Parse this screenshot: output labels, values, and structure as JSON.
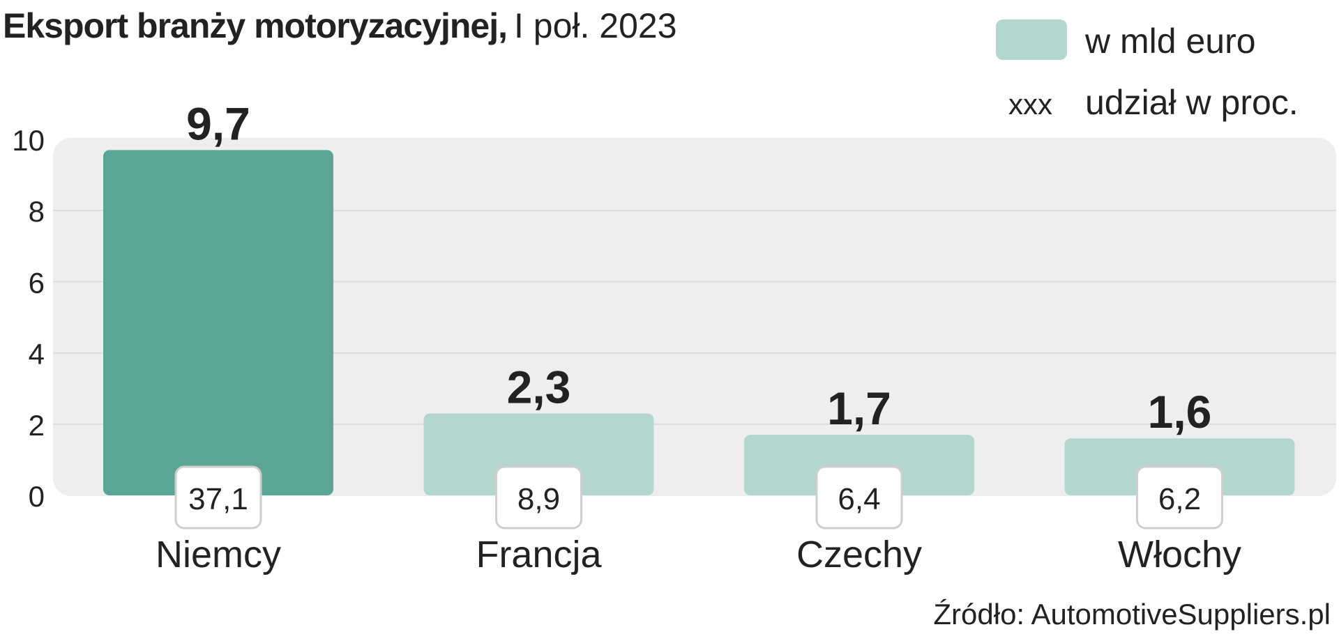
{
  "title": {
    "bold": "Eksport branży motoryzacyjnej,",
    "regular": "I poł. 2023"
  },
  "legend": {
    "bar_label": "w mld euro",
    "marker_text": "xxx",
    "share_label": "udział w proc."
  },
  "source": "Źródło: AutomotiveSuppliers.pl",
  "colors": {
    "highlight_bar": "#5ba596",
    "bar": "#b3d6ce",
    "plot_background": "#eeeeee",
    "grid": "#dcdcdc",
    "text": "#222222"
  },
  "chart_data": {
    "type": "bar",
    "title": "Eksport branży motoryzacyjnej, I poł. 2023",
    "categories": [
      "Niemcy",
      "Francja",
      "Czechy",
      "Włochy"
    ],
    "series": [
      {
        "name": "w mld euro",
        "values": [
          9.7,
          2.3,
          1.7,
          1.6
        ],
        "value_labels": [
          "9,7",
          "2,3",
          "1,7",
          "1,6"
        ]
      },
      {
        "name": "udział w proc.",
        "values": [
          37.1,
          8.9,
          6.4,
          6.2
        ],
        "value_labels": [
          "37,1",
          "8,9",
          "6,4",
          "6,2"
        ]
      }
    ],
    "highlight_index": 0,
    "ylim": [
      0,
      10
    ],
    "yticks": [
      0,
      2,
      4,
      6,
      8,
      10
    ],
    "ytick_labels": [
      "0",
      "2",
      "4",
      "6",
      "8",
      "10"
    ],
    "grid": true,
    "legend_position": "top-right",
    "xlabel": "",
    "ylabel": ""
  }
}
